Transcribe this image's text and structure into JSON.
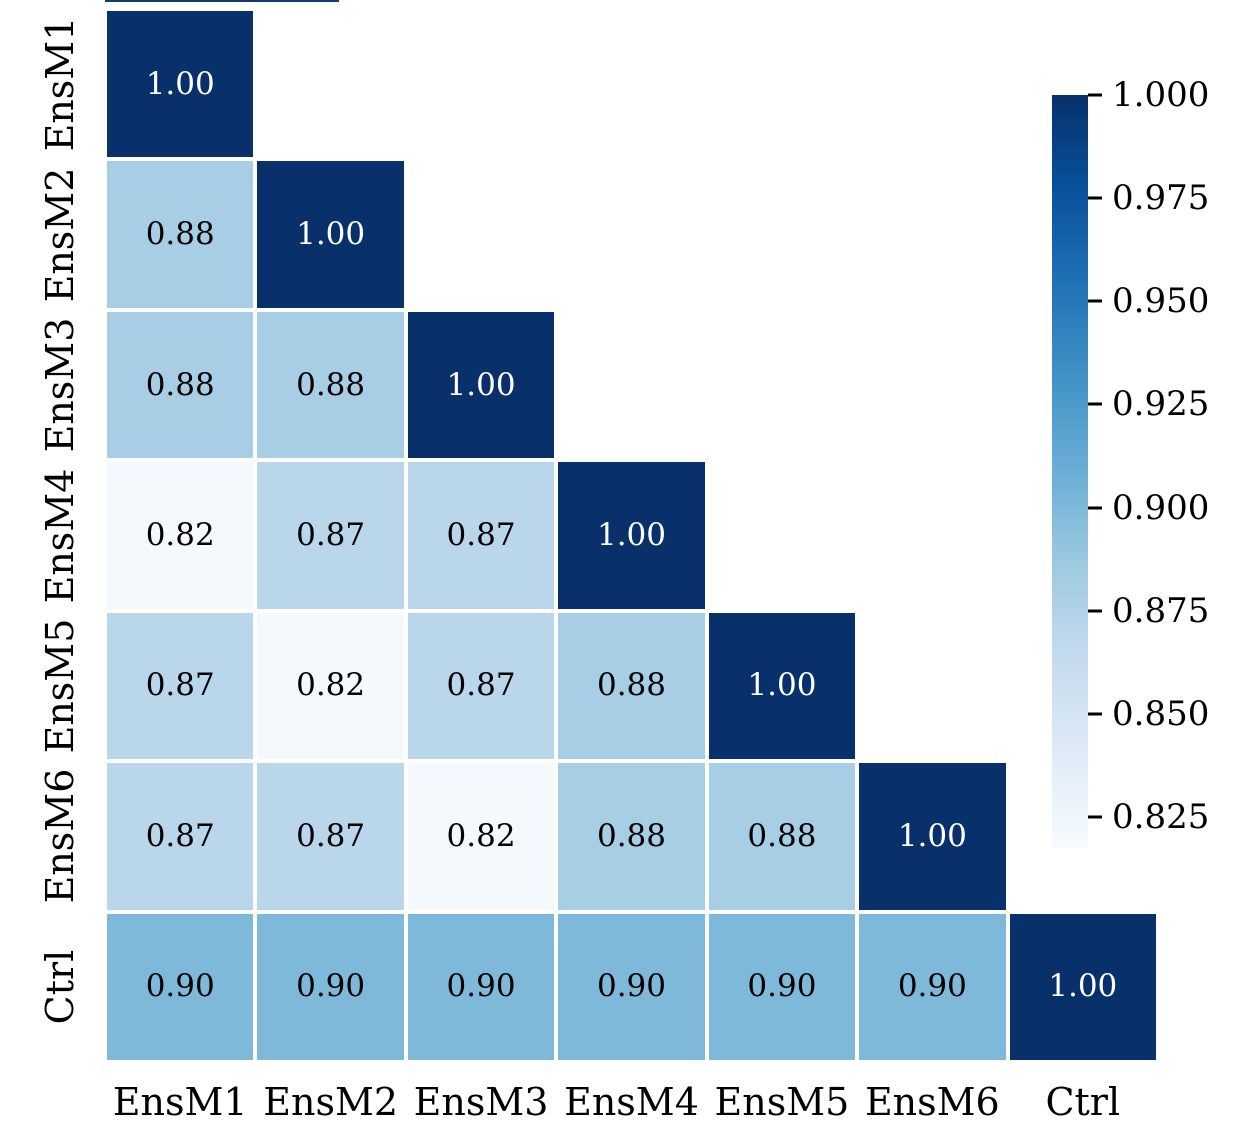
{
  "chart_data": {
    "type": "heatmap",
    "subtype": "correlation_matrix_lower_triangle",
    "title": "",
    "xlabel": "",
    "ylabel": "",
    "x_tick_labels": [
      "EnsM1",
      "EnsM2",
      "EnsM3",
      "EnsM4",
      "EnsM5",
      "EnsM6",
      "Ctrl"
    ],
    "y_tick_labels": [
      "EnsM1",
      "EnsM2",
      "EnsM3",
      "EnsM4",
      "EnsM5",
      "EnsM6",
      "Ctrl"
    ],
    "matrix": [
      [
        1.0,
        null,
        null,
        null,
        null,
        null,
        null
      ],
      [
        0.88,
        1.0,
        null,
        null,
        null,
        null,
        null
      ],
      [
        0.88,
        0.88,
        1.0,
        null,
        null,
        null,
        null
      ],
      [
        0.82,
        0.87,
        0.87,
        1.0,
        null,
        null,
        null
      ],
      [
        0.87,
        0.82,
        0.87,
        0.88,
        1.0,
        null,
        null
      ],
      [
        0.87,
        0.87,
        0.82,
        0.88,
        0.88,
        1.0,
        null
      ],
      [
        0.9,
        0.9,
        0.9,
        0.9,
        0.9,
        0.9,
        1.0
      ]
    ],
    "mask": "upper_triangle",
    "value_decimals": 2,
    "grid_on": false,
    "legend_position": "none",
    "colormap": {
      "name": "Blues",
      "stops": [
        "#f7fbff",
        "#deebf7",
        "#c6dbef",
        "#9ecae1",
        "#6baed6",
        "#4292c6",
        "#2171b5",
        "#08519c",
        "#08306b"
      ]
    },
    "vmin": 0.8175,
    "vmax": 1.0,
    "cell_gap_color": "#ffffff",
    "annotation_color_dark": "#000000",
    "annotation_color_light": "#ffffff",
    "colorbar": {
      "position": "right",
      "ticks": [
        {
          "value": 1.0,
          "label": "1.000"
        },
        {
          "value": 0.975,
          "label": "0.975"
        },
        {
          "value": 0.95,
          "label": "0.950"
        },
        {
          "value": 0.925,
          "label": "0.925"
        },
        {
          "value": 0.9,
          "label": "0.900"
        },
        {
          "value": 0.875,
          "label": "0.875"
        },
        {
          "value": 0.85,
          "label": "0.850"
        },
        {
          "value": 0.825,
          "label": "0.825"
        }
      ]
    }
  }
}
